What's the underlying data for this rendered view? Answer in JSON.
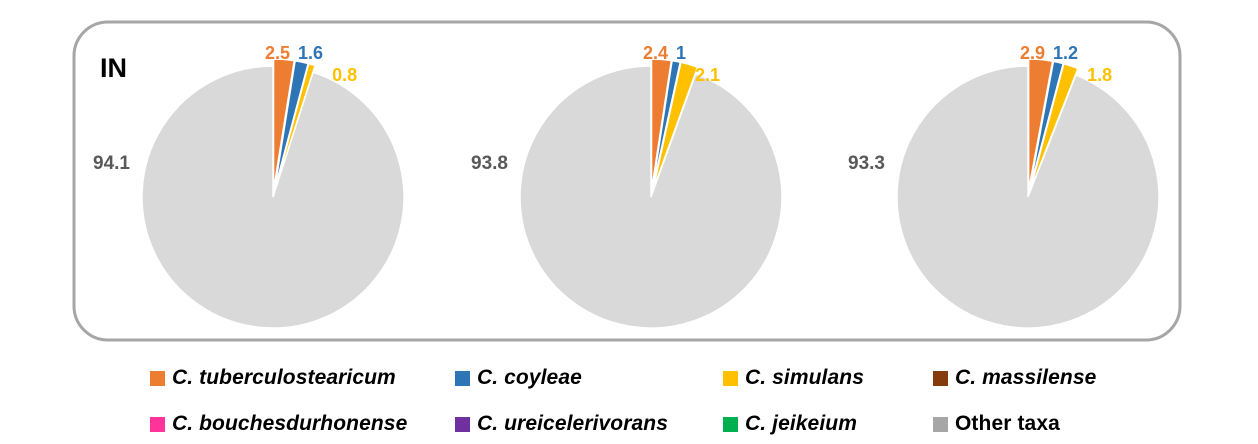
{
  "panel": {
    "label": "IN"
  },
  "chart_data": [
    {
      "type": "pie",
      "slices": [
        {
          "name": "C. tuberculostearicum",
          "value": 2.5,
          "label": "2.5",
          "color": "#ed7d31"
        },
        {
          "name": "C. coyleae",
          "value": 1.6,
          "label": "1.6",
          "color": "#2e75b6"
        },
        {
          "name": "C. simulans",
          "value": 0.8,
          "label": "0.8",
          "color": "#ffc000"
        },
        {
          "name": "Other taxa",
          "value": 94.1,
          "label": "94.1",
          "color": "#d9d9d9"
        }
      ]
    },
    {
      "type": "pie",
      "slices": [
        {
          "name": "C. tuberculostearicum",
          "value": 2.4,
          "label": "2.4",
          "color": "#ed7d31"
        },
        {
          "name": "C. coyleae",
          "value": 1,
          "label": "1",
          "color": "#2e75b6"
        },
        {
          "name": "C. simulans",
          "value": 2.1,
          "label": "2.1",
          "color": "#ffc000"
        },
        {
          "name": "Other taxa",
          "value": 93.8,
          "label": "93.8",
          "color": "#d9d9d9"
        }
      ]
    },
    {
      "type": "pie",
      "slices": [
        {
          "name": "C. tuberculostearicum",
          "value": 2.9,
          "label": "2.9",
          "color": "#ed7d31"
        },
        {
          "name": "C. coyleae",
          "value": 1.2,
          "label": "1.2",
          "color": "#2e75b6"
        },
        {
          "name": "C. simulans",
          "value": 1.8,
          "label": "1.8",
          "color": "#ffc000"
        },
        {
          "name": "Other taxa",
          "value": 93.3,
          "label": "93.3",
          "color": "#d9d9d9"
        }
      ]
    }
  ],
  "legend": {
    "items": [
      {
        "label": "C. tuberculostearicum",
        "color": "#ed7d31",
        "italic": true
      },
      {
        "label": "C. coyleae",
        "color": "#2e75b6",
        "italic": true
      },
      {
        "label": "C. simulans",
        "color": "#ffc000",
        "italic": true
      },
      {
        "label": "C. massilense",
        "color": "#843c0c",
        "italic": true
      },
      {
        "label": "C. bouchesdurhonense",
        "color": "#ff3399",
        "italic": true
      },
      {
        "label": "C. ureicelerivorans",
        "color": "#7030a0",
        "italic": true
      },
      {
        "label": "C. jeikeium",
        "color": "#00b050",
        "italic": true
      },
      {
        "label": "Other taxa",
        "color": "#a6a6a6",
        "italic": false
      }
    ]
  }
}
